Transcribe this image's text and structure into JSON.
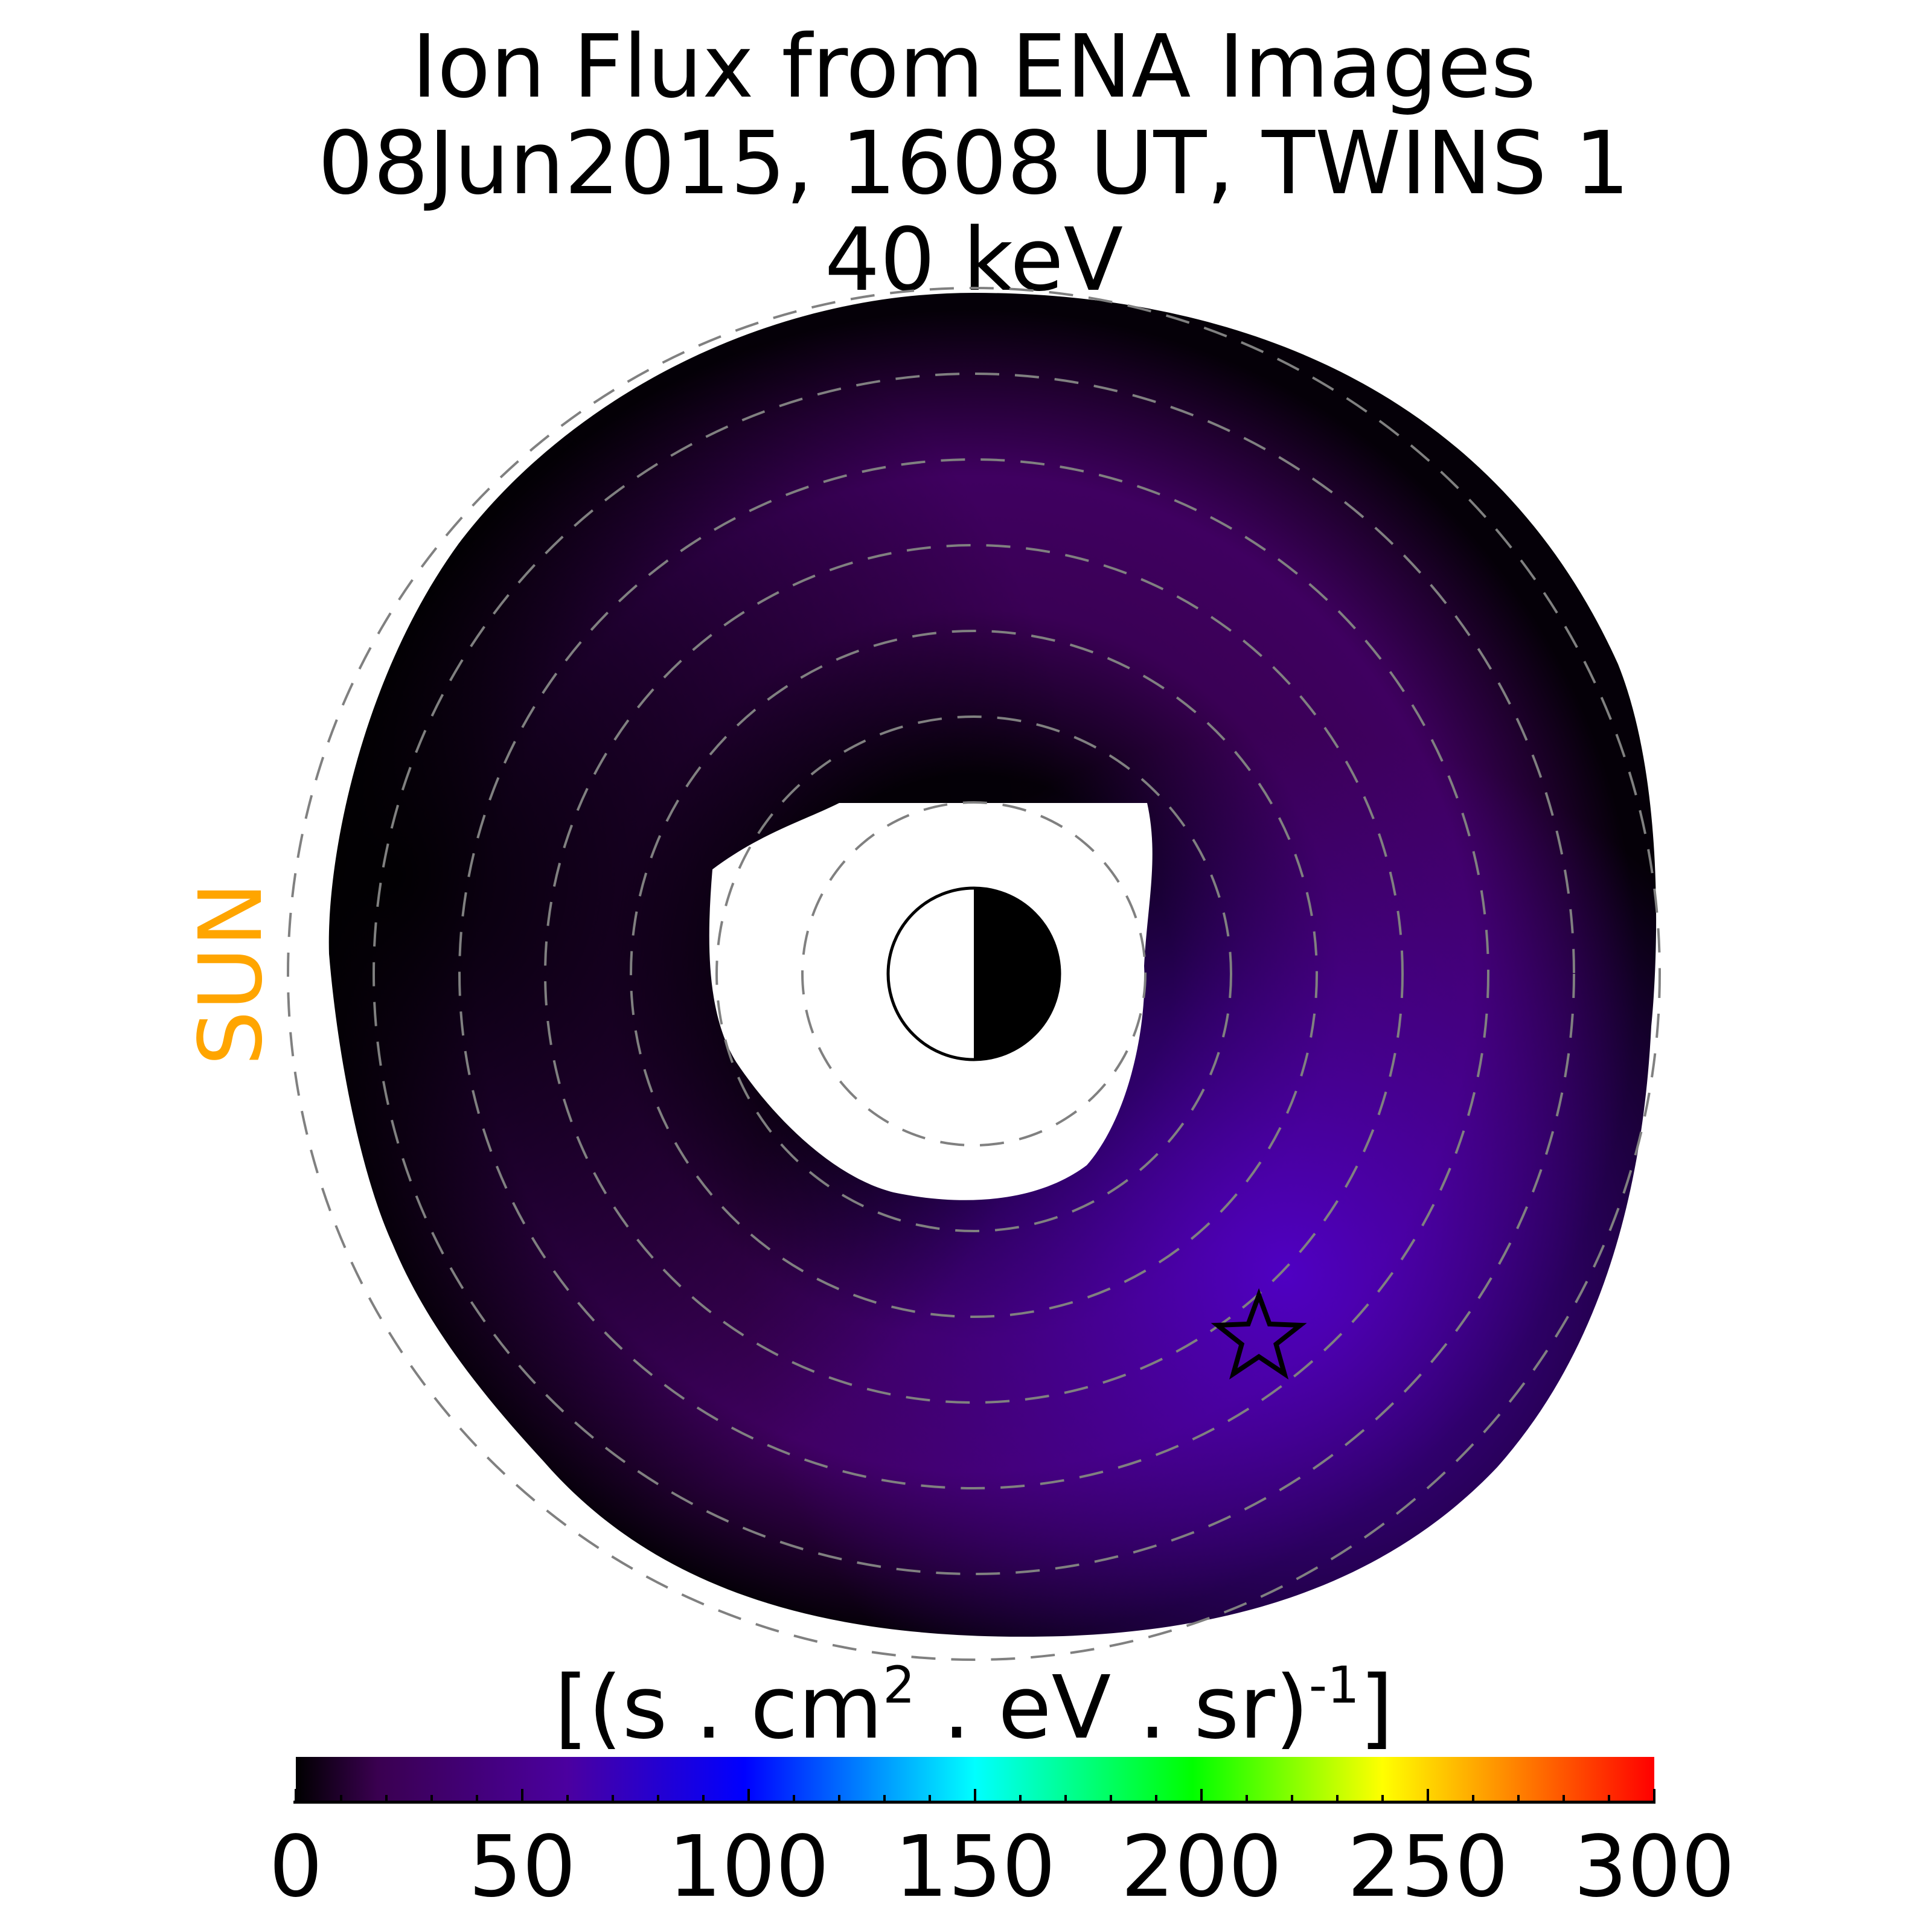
{
  "chart_data": {
    "type": "heatmap",
    "projection": "polar equatorial-plane map, Earth at center, Sun to the left",
    "title_lines": [
      "Ion Flux from  ENA Images",
      "08Jun2015, 1608 UT,  TWINS 1",
      "40 keV"
    ],
    "sun_label": "SUN",
    "colorbar": {
      "label_base": "[(s . cm",
      "label_sup1": "2",
      "label_mid": "  . eV . sr)",
      "label_sup2": "-1",
      "label_end": "]",
      "range": [
        0,
        300
      ],
      "ticks": [
        0,
        50,
        100,
        150,
        200,
        250,
        300
      ],
      "tick_labels": [
        "0",
        "50",
        "100",
        "150",
        "200",
        "250",
        "300"
      ],
      "colormap_stops": [
        "#000000",
        "#3a0050",
        "#4b00a0",
        "#0000ff",
        "#00ffff",
        "#00ff00",
        "#ffff00",
        "#ff8000",
        "#ff0000"
      ]
    },
    "flux_distribution": {
      "min_value": 0,
      "peak_value": 50,
      "peak_direction": "dusk-midnight (lower right)",
      "inner_empty_radius_re": 2.5,
      "outer_radius_re": 7.8
    },
    "reference_circles_re": [
      2,
      3,
      4,
      5,
      6,
      7,
      8
    ],
    "marker": {
      "symbol": "star",
      "label": "satellite position",
      "angle_deg_ccw_from_right": -52,
      "radius_re": 5.4
    },
    "colors": {
      "reference_circle": "#808080",
      "sun_label": "#FFA500",
      "ring_dark": "#0a000f",
      "ring_mid": "#3d0058",
      "ring_peak": "#4a00b0"
    }
  }
}
